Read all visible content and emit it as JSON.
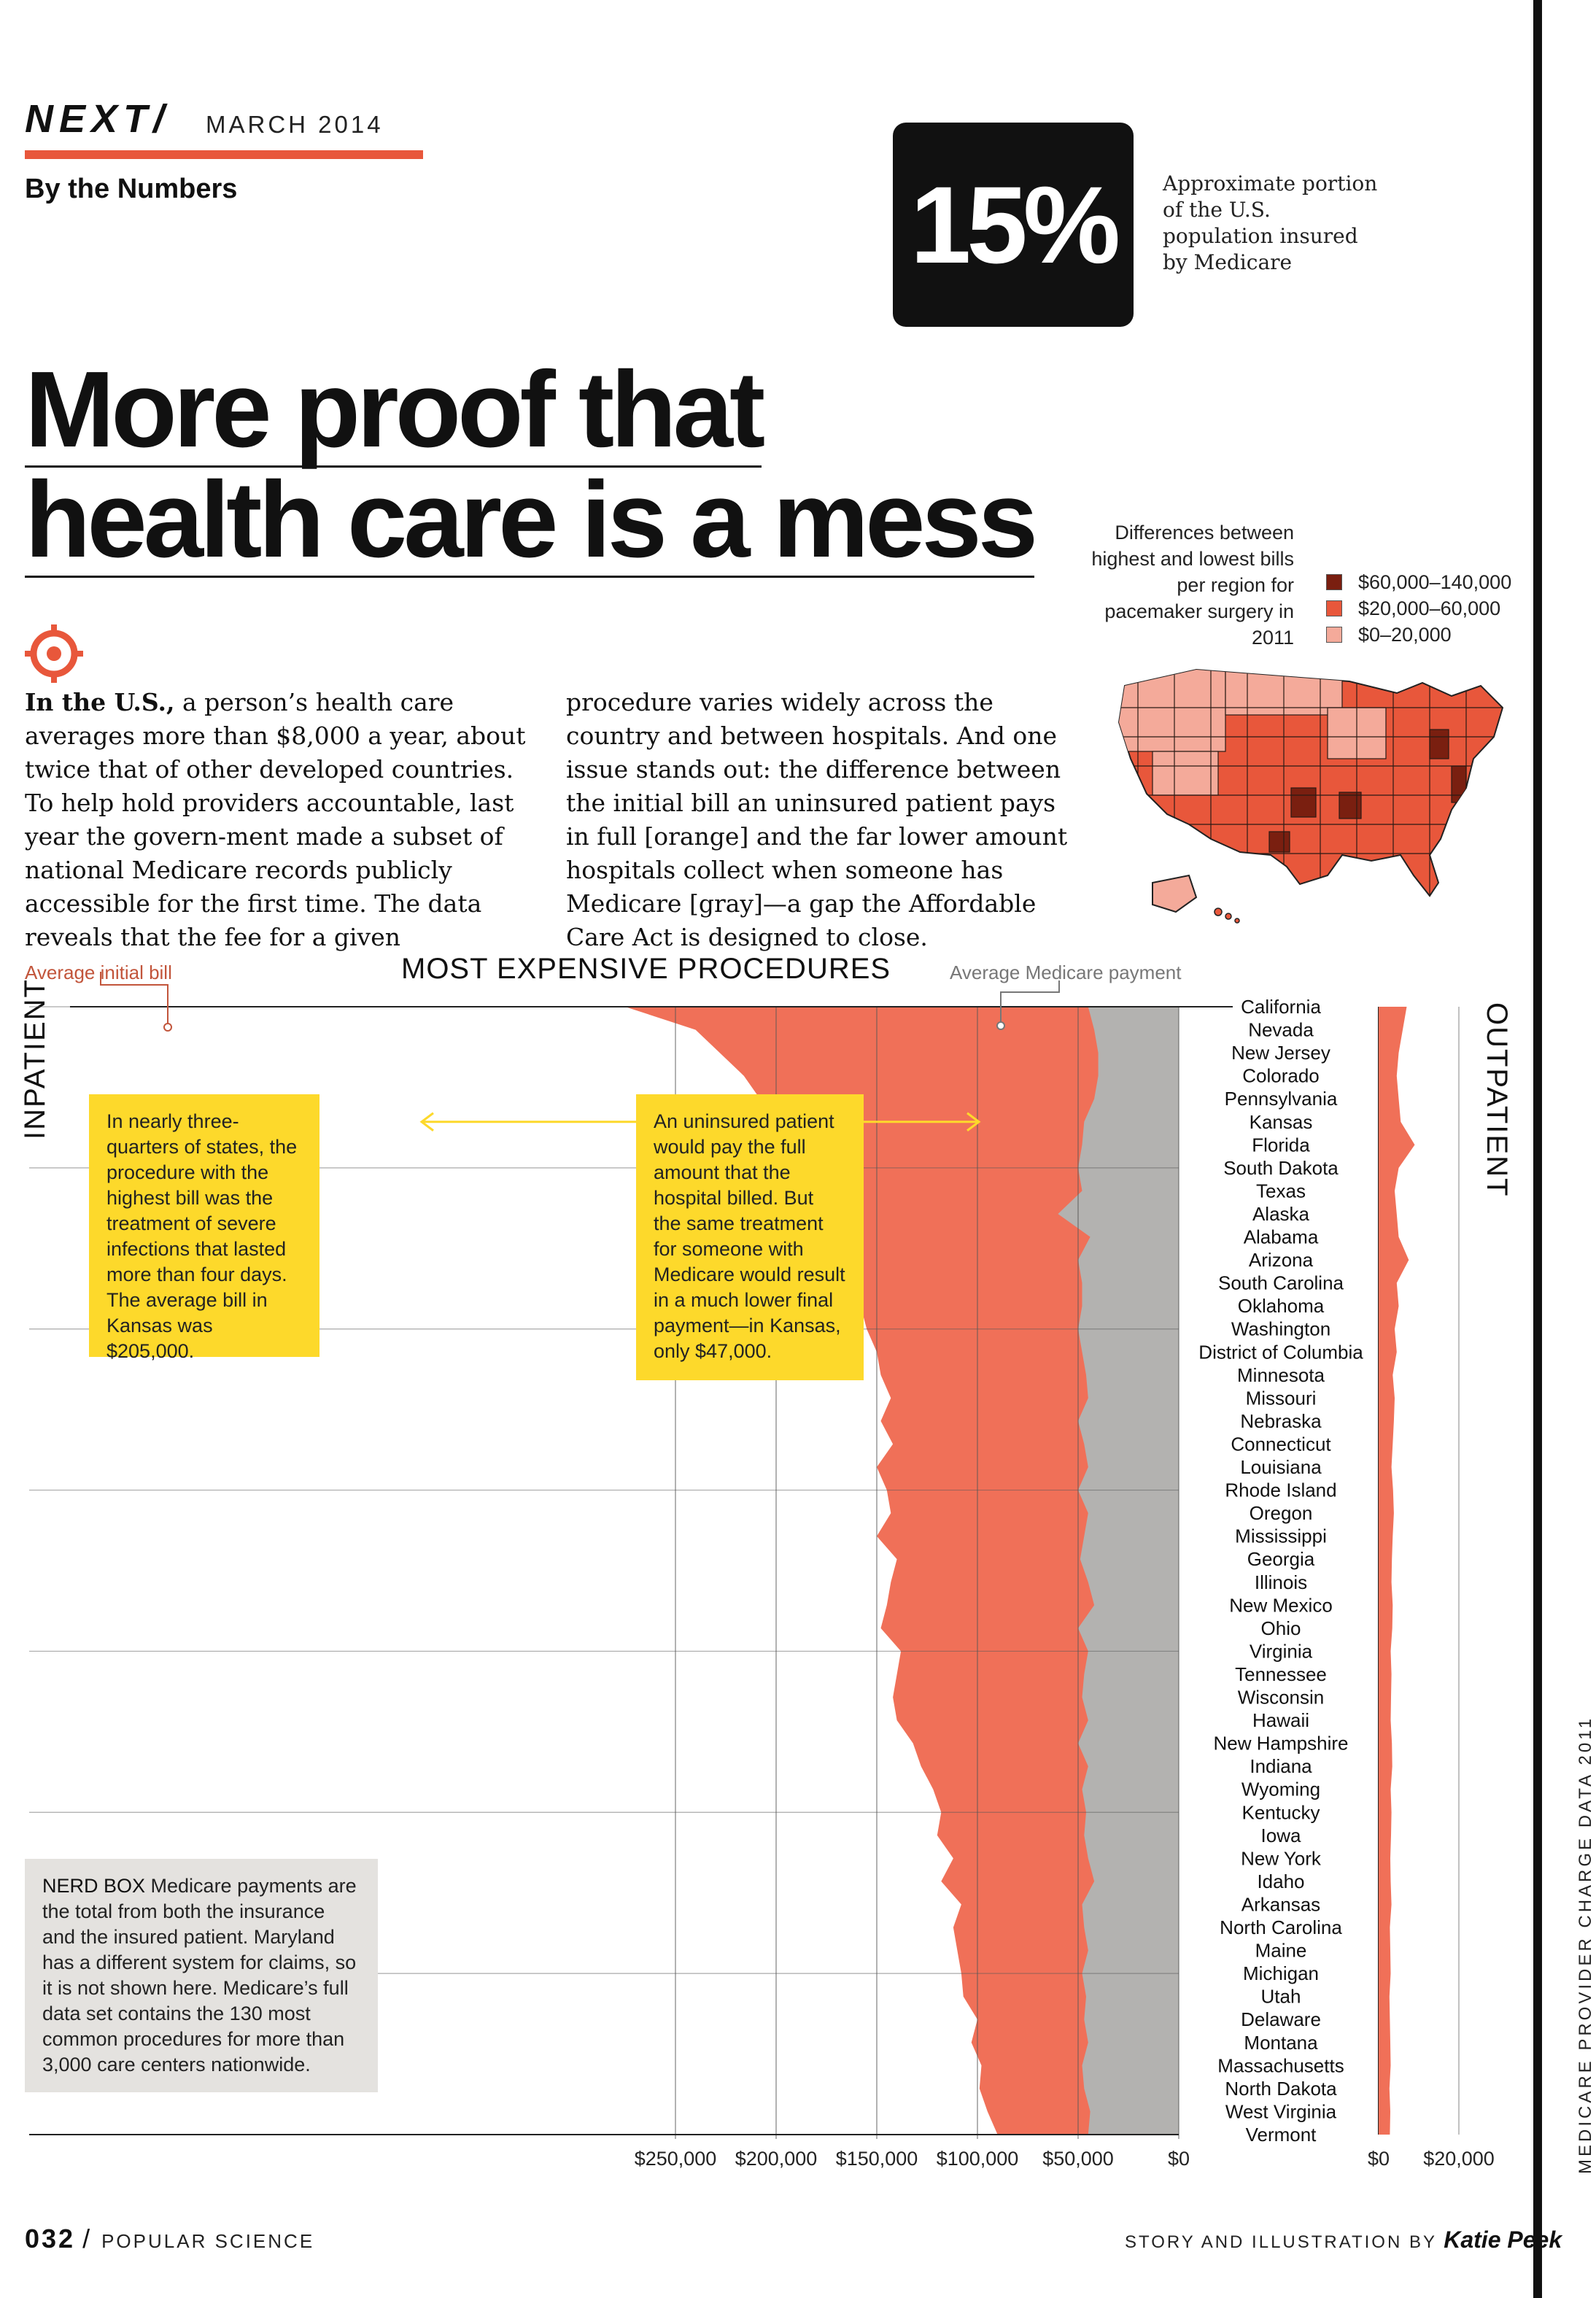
{
  "header": {
    "brand": "NEXT/",
    "issue": "MARCH 2014",
    "section": "By the Numbers"
  },
  "stat": {
    "value": "15%",
    "caption": "Approximate portion of the U.S. population insured by Medicare"
  },
  "headline": {
    "line1": "More proof that",
    "line2": "health care is a mess"
  },
  "body": {
    "lead": "In the U.S.,",
    "col1": " a person’s health care averages more than $8,000 a year, about twice that of other developed countries. To help hold providers accountable, last year the govern-ment made a subset of national Medicare records publicly accessible for the first time. The data reveals that the fee for a given",
    "col2": "procedure varies widely across the country and between hospitals. And one issue stands out: the difference between the initial bill an uninsured patient pays in full [orange] and the far lower amount hospitals collect when someone has Medicare [gray]—a gap the Affordable Care Act is designed to close."
  },
  "map": {
    "caption": "Differences between highest and lowest bills per region for pacemaker surgery in 2011",
    "legend": [
      {
        "label": "$60,000–140,000",
        "color": "#7a1f10"
      },
      {
        "label": "$20,000–60,000",
        "color": "#e8573b"
      },
      {
        "label": "$0–20,000",
        "color": "#f4aa9a"
      }
    ]
  },
  "chart_labels": {
    "title": "MOST EXPENSIVE PROCEDURES",
    "avg_initial": "Average initial bill",
    "avg_medicare": "Average Medicare payment",
    "inpatient": "INPATIENT",
    "outpatient": "OUTPATIENT"
  },
  "callouts": {
    "left": "In nearly three-quarters of states, the procedure with the highest bill was the treatment of severe infections that lasted more than four days. The average bill in Kansas was $205,000.",
    "right": "An uninsured patient would pay the full amount that the hospital billed. But the same treatment for someone with Medicare would result in a much lower final payment—in Kansas, only $47,000."
  },
  "nerd_box": {
    "title": "NERD BOX",
    "text": " Medicare payments are the total from both the insurance and the insured patient. Maryland has a different system for claims, so it is not shown here. Medicare’s full data set contains the 130 most common procedures for more than 3,000 care centers nationwide."
  },
  "footer": {
    "page": "032",
    "publication": "POPULAR SCIENCE",
    "credit": "STORY AND ILLUSTRATION BY",
    "author": "Katie Peek",
    "source": "MEDICARE PROVIDER CHARGE DATA 2011"
  },
  "chart_data": {
    "type": "area",
    "title": "MOST EXPENSIVE PROCEDURES",
    "colors": {
      "initial_bill": "#f07058",
      "medicare": "#b3b2b0",
      "outline": "#222222"
    },
    "inpatient_axis": {
      "ticks": [
        "$250,000",
        "$200,000",
        "$150,000",
        "$100,000",
        "$50,000",
        "$0"
      ],
      "range": [
        0,
        280000
      ],
      "direction": "right-to-left"
    },
    "outpatient_axis": {
      "ticks": [
        "$0",
        "$20,000"
      ],
      "range": [
        0,
        25000
      ]
    },
    "states": [
      "California",
      "Nevada",
      "New Jersey",
      "Colorado",
      "Pennsylvania",
      "Kansas",
      "Florida",
      "South Dakota",
      "Texas",
      "Alaska",
      "Alabama",
      "Arizona",
      "South Carolina",
      "Oklahoma",
      "Washington",
      "District of Columbia",
      "Minnesota",
      "Missouri",
      "Nebraska",
      "Connecticut",
      "Louisiana",
      "Rhode Island",
      "Oregon",
      "Mississippi",
      "Georgia",
      "Illinois",
      "New Mexico",
      "Ohio",
      "Virginia",
      "Tennessee",
      "Wisconsin",
      "Hawaii",
      "New Hampshire",
      "Indiana",
      "Wyoming",
      "Kentucky",
      "Iowa",
      "New York",
      "Idaho",
      "Arkansas",
      "North Carolina",
      "Maine",
      "Michigan",
      "Utah",
      "Delaware",
      "Montana",
      "Massachusetts",
      "North Dakota",
      "West Virginia",
      "Vermont"
    ],
    "series": [
      {
        "name": "Average initial bill",
        "values": [
          275000,
          240000,
          228000,
          216000,
          208000,
          205000,
          185000,
          178000,
          180000,
          168000,
          163000,
          158000,
          158000,
          158000,
          155000,
          150000,
          148000,
          143000,
          148000,
          142000,
          150000,
          145000,
          143000,
          150000,
          140000,
          143000,
          145000,
          148000,
          138000,
          140000,
          142000,
          140000,
          132000,
          128000,
          122000,
          118000,
          120000,
          112000,
          118000,
          108000,
          112000,
          110000,
          108000,
          107000,
          100000,
          103000,
          98000,
          99000,
          95000,
          90000
        ]
      },
      {
        "name": "Average Medicare payment",
        "values": [
          45000,
          42000,
          40000,
          40000,
          42000,
          47000,
          48000,
          50000,
          48000,
          60000,
          44000,
          50000,
          48000,
          48000,
          50000,
          48000,
          46000,
          45000,
          50000,
          47000,
          45000,
          50000,
          45000,
          47000,
          49000,
          45000,
          42000,
          50000,
          45000,
          47000,
          48000,
          45000,
          50000,
          45000,
          48000,
          46000,
          47000,
          45000,
          42000,
          48000,
          47000,
          45000,
          48000,
          46000,
          47000,
          45000,
          48000,
          47000,
          44000,
          45000
        ]
      },
      {
        "name": "Outpatient",
        "values": [
          7000,
          6000,
          5000,
          4500,
          5000,
          5500,
          9000,
          5000,
          4000,
          4500,
          5000,
          7500,
          4500,
          5000,
          4000,
          4500,
          3500,
          4000,
          3800,
          3500,
          3200,
          3600,
          3800,
          3500,
          3300,
          3200,
          3500,
          3400,
          3000,
          3200,
          3100,
          3000,
          3300,
          3400,
          3000,
          3200,
          3100,
          2900,
          3000,
          3200,
          2800,
          2900,
          3000,
          2700,
          2800,
          2900,
          3000,
          2700,
          2900,
          2800
        ]
      }
    ]
  }
}
